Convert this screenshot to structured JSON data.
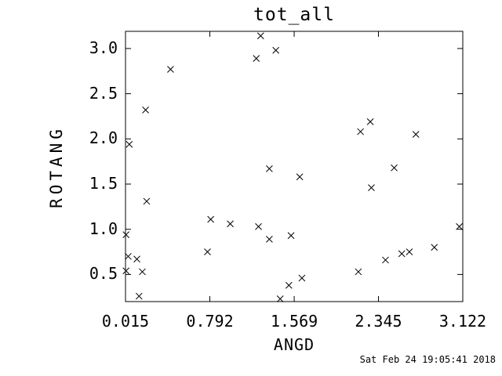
{
  "chart_data": {
    "type": "scatter",
    "title": "tot_all",
    "xlabel": "ANGD",
    "ylabel": "ROTANG",
    "marker": "x",
    "marker_color": "#000000",
    "axis_color": "#000000",
    "background": "#ffffff",
    "grid": false,
    "legend": false,
    "xlim": [
      0.015,
      3.122
    ],
    "ylim": [
      0.2,
      3.19
    ],
    "xticks": [
      0.015,
      0.792,
      1.569,
      2.345,
      3.122
    ],
    "xtick_labels": [
      "0.015",
      "0.792",
      "1.569",
      "2.345",
      "3.122"
    ],
    "yticks": [
      0.5,
      1.0,
      1.5,
      2.0,
      2.5,
      3.0
    ],
    "ytick_labels": [
      "0.5",
      "1.0",
      "1.5",
      "2.0",
      "2.5",
      "3.0"
    ],
    "points": [
      [
        0.05,
        1.94
      ],
      [
        0.2,
        2.32
      ],
      [
        0.21,
        1.31
      ],
      [
        0.43,
        2.77
      ],
      [
        0.02,
        0.94
      ],
      [
        0.04,
        0.7
      ],
      [
        0.12,
        0.67
      ],
      [
        0.02,
        0.54
      ],
      [
        0.17,
        0.53
      ],
      [
        0.14,
        0.26
      ],
      [
        0.77,
        0.75
      ],
      [
        0.8,
        1.11
      ],
      [
        0.98,
        1.06
      ],
      [
        1.22,
        2.89
      ],
      [
        1.26,
        3.14
      ],
      [
        1.4,
        2.98
      ],
      [
        1.24,
        1.03
      ],
      [
        1.34,
        0.89
      ],
      [
        1.54,
        0.93
      ],
      [
        1.34,
        1.67
      ],
      [
        1.62,
        1.58
      ],
      [
        1.44,
        0.23
      ],
      [
        1.52,
        0.38
      ],
      [
        1.64,
        0.46
      ],
      [
        2.16,
        0.53
      ],
      [
        2.18,
        2.08
      ],
      [
        2.27,
        2.19
      ],
      [
        2.28,
        1.46
      ],
      [
        2.41,
        0.66
      ],
      [
        2.49,
        1.68
      ],
      [
        2.56,
        0.73
      ],
      [
        2.63,
        0.75
      ],
      [
        2.69,
        2.05
      ],
      [
        2.86,
        0.8
      ],
      [
        3.09,
        1.03
      ]
    ]
  },
  "footer": {
    "timestamp": "Sat Feb 24 19:05:41 2018"
  }
}
